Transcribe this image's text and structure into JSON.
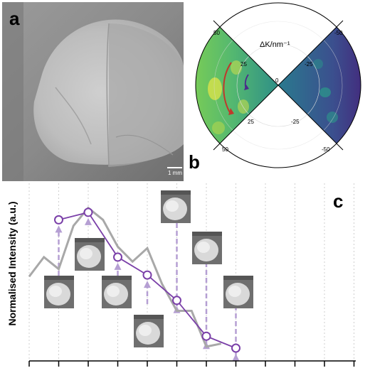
{
  "figure": {
    "panel_a": {
      "letter": "a",
      "scale_bar_label": "1 mm"
    },
    "panel_b": {
      "letter": "b",
      "axis_label": "ΔK/nm⁻¹",
      "tick_labels": [
        "50",
        "25",
        "0",
        "25",
        "50",
        "-50",
        "-25",
        "-25",
        "-50"
      ]
    },
    "panel_c": {
      "letter": "c",
      "ylabel": "Normalised Intensity (a.u.)"
    }
  },
  "chart_data": {
    "type": "line",
    "ylabel": "Normalised Intensity (a.u.)",
    "x_categories": 12,
    "series": [
      {
        "color": "#7a3fa8",
        "marker": "open-circle",
        "values": [
          0.86,
          0.91,
          0.61,
          0.49,
          0.32,
          0.08,
          0.0
        ]
      },
      {
        "color": "#a8a8a8",
        "marker": "none",
        "values": [
          0.48,
          0.61,
          0.53,
          0.82,
          0.94,
          0.86,
          0.68,
          0.58,
          0.67,
          0.43,
          0.25,
          0.25,
          0.01,
          0.03
        ]
      }
    ],
    "thumbnail_count": 7,
    "arrow_color": "#b59fd3"
  }
}
